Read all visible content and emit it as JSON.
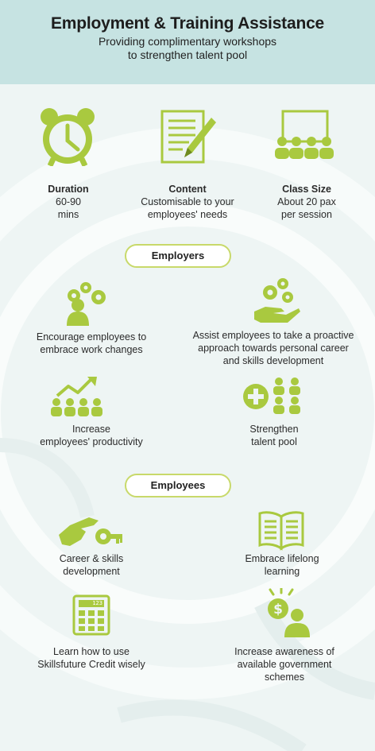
{
  "header": {
    "title": "Employment & Training Assistance",
    "subtitle": "Providing complimentary workshops\nto strengthen talent pool"
  },
  "colors": {
    "accent_green": "#a9c93f",
    "header_bg": "#c6e3e2",
    "pill_border": "#c8d96a"
  },
  "overview": [
    {
      "icon": "alarm-clock-icon",
      "title": "Duration",
      "text": "60-90\nmins"
    },
    {
      "icon": "document-pencil-icon",
      "title": "Content",
      "text": "Customisable to your\nemployees' needs"
    },
    {
      "icon": "classroom-icon",
      "title": "Class Size",
      "text": "About 20 pax\nper session"
    }
  ],
  "employers": {
    "label": "Employers",
    "items": [
      {
        "icon": "person-gears-icon",
        "text": "Encourage employees to\nembrace work changes"
      },
      {
        "icon": "hand-gears-icon",
        "text": "Assist employees to take a proactive\napproach towards personal career\nand skills development"
      },
      {
        "icon": "productivity-growth-icon",
        "text": "Increase\nemployees' productivity"
      },
      {
        "icon": "talent-pool-plus-icon",
        "text": "Strengthen\ntalent pool"
      }
    ]
  },
  "employees": {
    "label": "Employees",
    "items": [
      {
        "icon": "hand-key-icon",
        "text": "Career & skills\ndevelopment"
      },
      {
        "icon": "open-book-icon",
        "text": "Embrace lifelong\nlearning"
      },
      {
        "icon": "calculator-icon",
        "text": "Learn how to use\nSkillsfuture Credit wisely",
        "calc_display": "123"
      },
      {
        "icon": "person-dollar-icon",
        "text": "Increase awareness of\navailable government\nschemes"
      }
    ]
  }
}
